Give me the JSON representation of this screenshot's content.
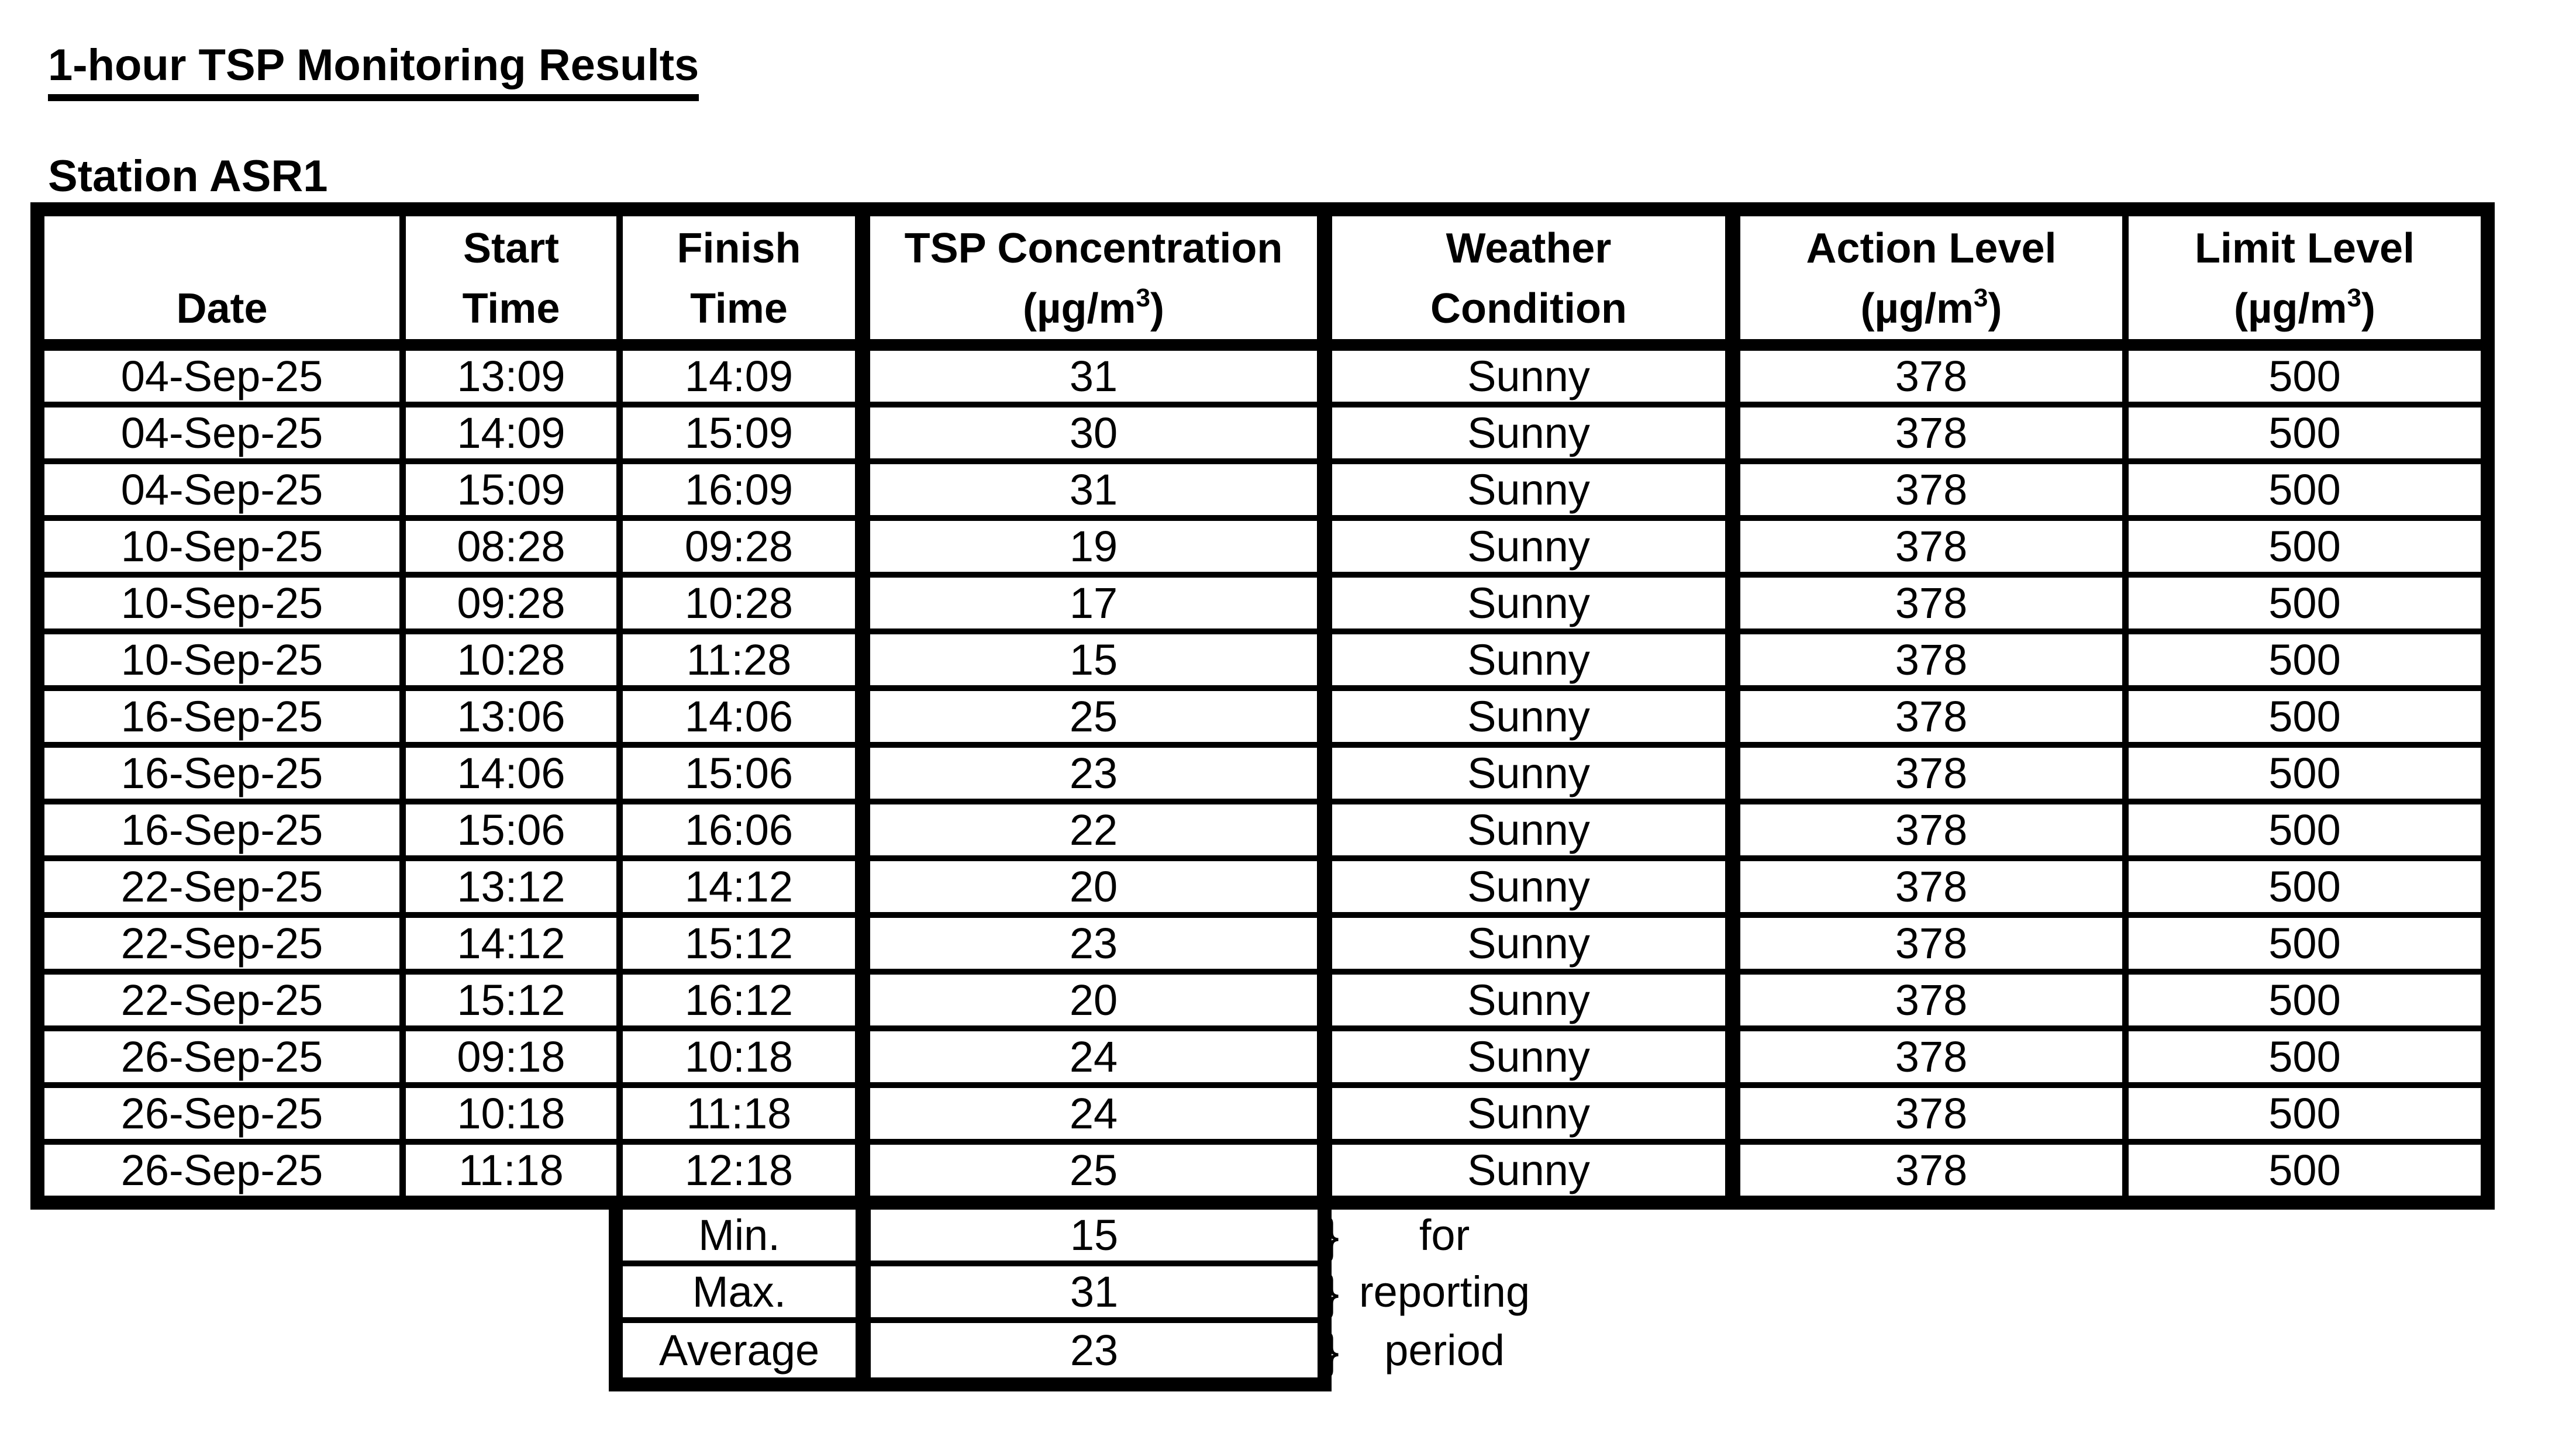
{
  "page": {
    "title": "1-hour TSP Monitoring Results",
    "station_label": "Station ASR1",
    "colors": {
      "text": "#000000",
      "background": "#ffffff",
      "border": "#000000"
    }
  },
  "table": {
    "columns": [
      {
        "id": "date",
        "line1": "",
        "line2": "Date"
      },
      {
        "id": "start",
        "line1": "Start",
        "line2": "Time"
      },
      {
        "id": "finish",
        "line1": "Finish",
        "line2": "Time"
      },
      {
        "id": "tsp",
        "line1": "TSP Concentration",
        "unit": true
      },
      {
        "id": "weather",
        "line1": "Weather",
        "line2": "Condition"
      },
      {
        "id": "action",
        "line1": "Action Level",
        "unit": true
      },
      {
        "id": "limit",
        "line1": "Limit Level",
        "unit": true
      }
    ],
    "unit": {
      "open": "(µg/m",
      "sup": "3",
      "close": ")"
    },
    "rows": [
      {
        "date": "04-Sep-25",
        "start": "13:09",
        "finish": "14:09",
        "tsp": "31",
        "weather": "Sunny",
        "action": "378",
        "limit": "500"
      },
      {
        "date": "04-Sep-25",
        "start": "14:09",
        "finish": "15:09",
        "tsp": "30",
        "weather": "Sunny",
        "action": "378",
        "limit": "500"
      },
      {
        "date": "04-Sep-25",
        "start": "15:09",
        "finish": "16:09",
        "tsp": "31",
        "weather": "Sunny",
        "action": "378",
        "limit": "500"
      },
      {
        "date": "10-Sep-25",
        "start": "08:28",
        "finish": "09:28",
        "tsp": "19",
        "weather": "Sunny",
        "action": "378",
        "limit": "500"
      },
      {
        "date": "10-Sep-25",
        "start": "09:28",
        "finish": "10:28",
        "tsp": "17",
        "weather": "Sunny",
        "action": "378",
        "limit": "500"
      },
      {
        "date": "10-Sep-25",
        "start": "10:28",
        "finish": "11:28",
        "tsp": "15",
        "weather": "Sunny",
        "action": "378",
        "limit": "500"
      },
      {
        "date": "16-Sep-25",
        "start": "13:06",
        "finish": "14:06",
        "tsp": "25",
        "weather": "Sunny",
        "action": "378",
        "limit": "500"
      },
      {
        "date": "16-Sep-25",
        "start": "14:06",
        "finish": "15:06",
        "tsp": "23",
        "weather": "Sunny",
        "action": "378",
        "limit": "500"
      },
      {
        "date": "16-Sep-25",
        "start": "15:06",
        "finish": "16:06",
        "tsp": "22",
        "weather": "Sunny",
        "action": "378",
        "limit": "500"
      },
      {
        "date": "22-Sep-25",
        "start": "13:12",
        "finish": "14:12",
        "tsp": "20",
        "weather": "Sunny",
        "action": "378",
        "limit": "500"
      },
      {
        "date": "22-Sep-25",
        "start": "14:12",
        "finish": "15:12",
        "tsp": "23",
        "weather": "Sunny",
        "action": "378",
        "limit": "500"
      },
      {
        "date": "22-Sep-25",
        "start": "15:12",
        "finish": "16:12",
        "tsp": "20",
        "weather": "Sunny",
        "action": "378",
        "limit": "500"
      },
      {
        "date": "26-Sep-25",
        "start": "09:18",
        "finish": "10:18",
        "tsp": "24",
        "weather": "Sunny",
        "action": "378",
        "limit": "500"
      },
      {
        "date": "26-Sep-25",
        "start": "10:18",
        "finish": "11:18",
        "tsp": "24",
        "weather": "Sunny",
        "action": "378",
        "limit": "500"
      },
      {
        "date": "26-Sep-25",
        "start": "11:18",
        "finish": "12:18",
        "tsp": "25",
        "weather": "Sunny",
        "action": "378",
        "limit": "500"
      }
    ]
  },
  "summary": {
    "rows": [
      {
        "label": "Min.",
        "value": "15",
        "brace": "}",
        "note": "for"
      },
      {
        "label": "Max.",
        "value": "31",
        "brace": "}",
        "note": "reporting"
      },
      {
        "label": "Average",
        "value": "23",
        "brace": "}",
        "note": "period"
      }
    ]
  }
}
